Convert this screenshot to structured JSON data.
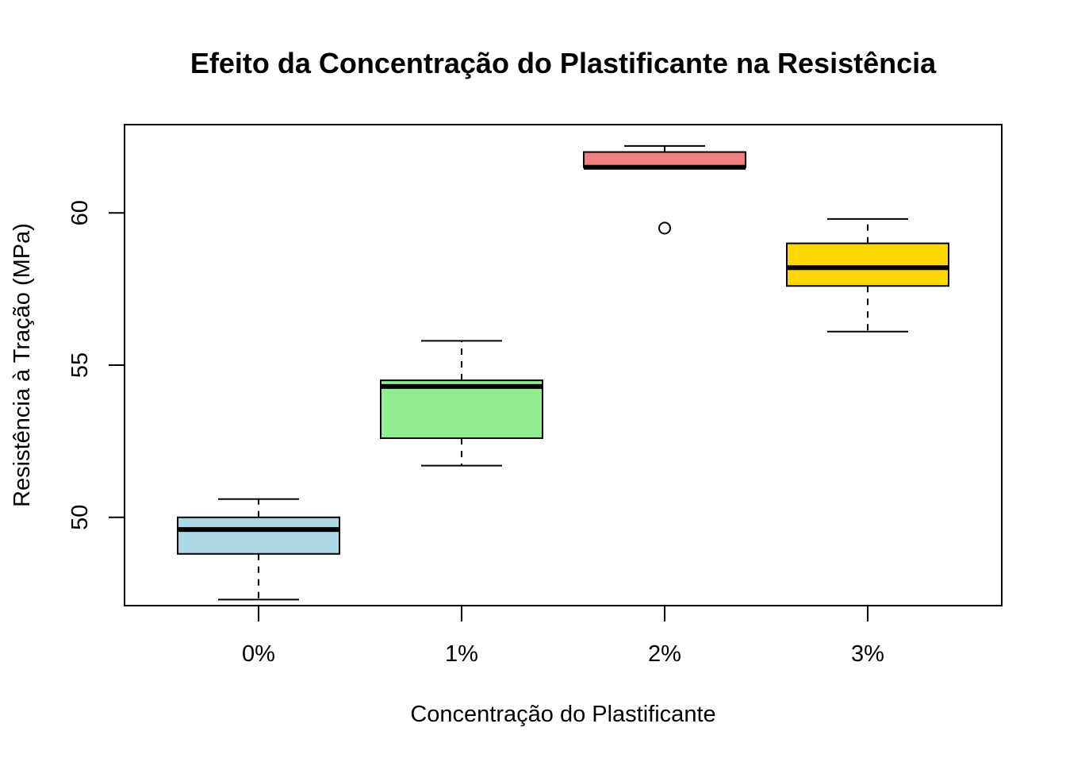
{
  "chart_data": {
    "type": "boxplot",
    "title": "Efeito da Concentração do Plastificante na Resistência",
    "xlabel": "Concentração do Plastificante",
    "ylabel": "Resistência à Tração (MPa)",
    "categories": [
      "0%",
      "1%",
      "2%",
      "3%"
    ],
    "yticks": [
      50,
      55,
      60
    ],
    "ylim": [
      47.1,
      62.9
    ],
    "grid": false,
    "boxes": [
      {
        "category": "0%",
        "whisker_low": 47.3,
        "q1": 48.8,
        "median": 49.6,
        "q3": 50.0,
        "whisker_high": 50.6,
        "outliers": [],
        "color": "#ADD8E6"
      },
      {
        "category": "1%",
        "whisker_low": 51.7,
        "q1": 52.6,
        "median": 54.3,
        "q3": 54.5,
        "whisker_high": 55.8,
        "outliers": [],
        "color": "#90EE90"
      },
      {
        "category": "2%",
        "whisker_low": 61.5,
        "q1": 61.5,
        "median": 61.5,
        "q3": 62.0,
        "whisker_high": 62.2,
        "outliers": [
          59.5
        ],
        "color": "#F08080"
      },
      {
        "category": "3%",
        "whisker_low": 56.1,
        "q1": 57.6,
        "median": 58.2,
        "q3": 59.0,
        "whisker_high": 59.8,
        "outliers": [],
        "color": "#FFD700"
      }
    ]
  }
}
